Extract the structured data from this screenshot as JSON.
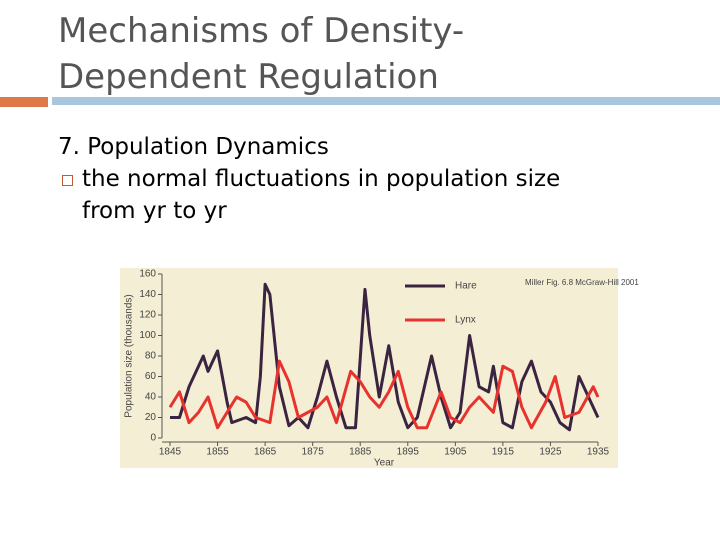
{
  "slide": {
    "title_line1": "Mechanisms of Density-",
    "title_line2": "Dependent Regulation",
    "heading": "7. Population Dynamics",
    "bullet_line1": "the normal fluctuations in population size",
    "bullet_line2": "from yr to yr"
  },
  "chart_data": {
    "type": "line",
    "x_label": "Year",
    "y_label": "Population size (thousands)",
    "annotation": "Miller Fig. 6.8 McGraw-Hill 2001",
    "xlim": [
      1845,
      1935
    ],
    "xticks": [
      1845,
      1855,
      1865,
      1875,
      1885,
      1895,
      1905,
      1915,
      1925,
      1935
    ],
    "ylim": [
      0,
      160
    ],
    "yticks": [
      0,
      20,
      40,
      60,
      80,
      100,
      120,
      140,
      160
    ],
    "series": [
      {
        "name": "Hare",
        "color": "#3b2440",
        "x": [
          1845,
          1847,
          1849,
          1851,
          1852,
          1853,
          1855,
          1857,
          1858,
          1861,
          1863,
          1864,
          1865,
          1866,
          1868,
          1870,
          1872,
          1874,
          1876,
          1878,
          1880,
          1882,
          1884,
          1886,
          1887,
          1889,
          1891,
          1893,
          1895,
          1897,
          1900,
          1902,
          1904,
          1906,
          1908,
          1910,
          1912,
          1913,
          1915,
          1917,
          1919,
          1921,
          1923,
          1925,
          1927,
          1929,
          1931,
          1933,
          1935
        ],
        "values": [
          20,
          20,
          50,
          70,
          80,
          65,
          85,
          35,
          15,
          20,
          15,
          60,
          150,
          140,
          50,
          12,
          20,
          10,
          40,
          75,
          40,
          10,
          10,
          145,
          100,
          40,
          90,
          35,
          10,
          20,
          80,
          40,
          10,
          25,
          100,
          50,
          45,
          70,
          15,
          10,
          55,
          75,
          45,
          35,
          15,
          8,
          60,
          40,
          20
        ]
      },
      {
        "name": "Lynx",
        "color": "#e8322e",
        "x": [
          1845,
          1847,
          1849,
          1851,
          1853,
          1855,
          1857,
          1859,
          1861,
          1863,
          1866,
          1868,
          1870,
          1872,
          1874,
          1876,
          1878,
          1880,
          1883,
          1885,
          1887,
          1889,
          1891,
          1893,
          1895,
          1897,
          1899,
          1902,
          1904,
          1906,
          1908,
          1910,
          1913,
          1915,
          1917,
          1919,
          1921,
          1924,
          1926,
          1928,
          1931,
          1934,
          1935
        ],
        "values": [
          30,
          45,
          15,
          25,
          40,
          10,
          25,
          40,
          35,
          20,
          15,
          75,
          55,
          20,
          25,
          30,
          40,
          15,
          65,
          55,
          40,
          30,
          45,
          65,
          30,
          10,
          10,
          45,
          20,
          15,
          30,
          40,
          25,
          70,
          65,
          30,
          10,
          35,
          60,
          20,
          25,
          50,
          40
        ]
      }
    ]
  }
}
